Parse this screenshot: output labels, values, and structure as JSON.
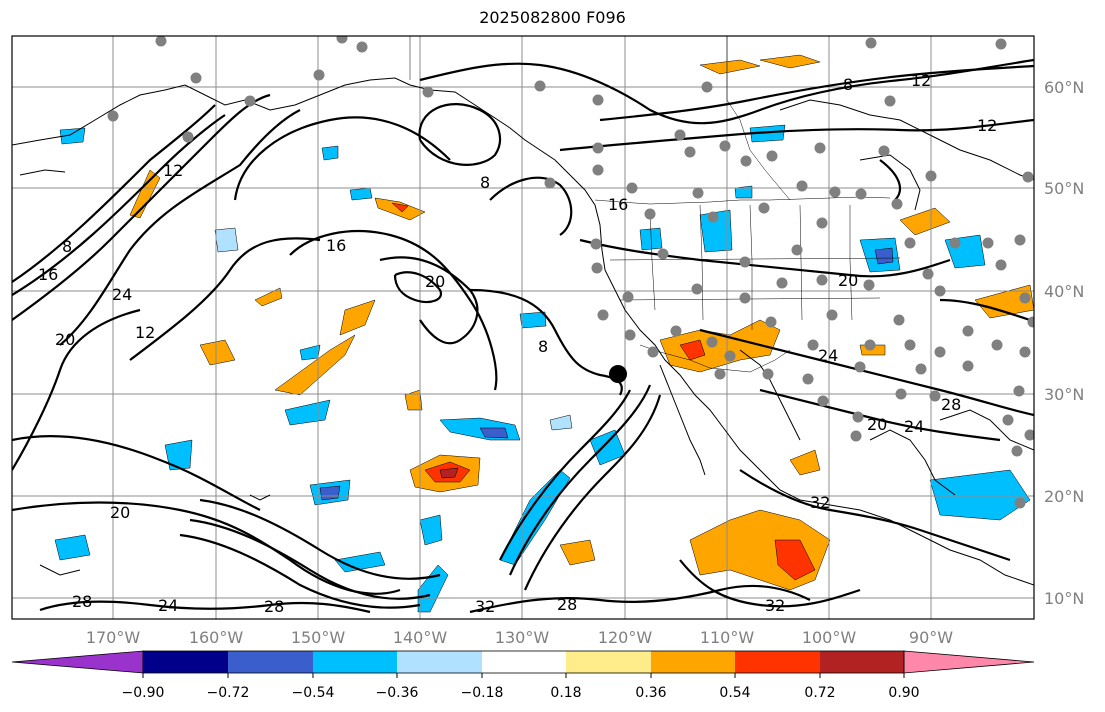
{
  "title": "2025082800 F096",
  "map": {
    "lat_labels": [
      "60°N",
      "50°N",
      "40°N",
      "30°N",
      "20°N",
      "10°N"
    ],
    "lon_labels": [
      "170°W",
      "160°W",
      "150°W",
      "140°W",
      "130°W",
      "120°W",
      "110°W",
      "100°W",
      "90°W"
    ],
    "contour_labels": [
      "8",
      "12",
      "16",
      "20",
      "24",
      "28",
      "32"
    ]
  },
  "colorbar": {
    "ticks": [
      "−0.90",
      "−0.72",
      "−0.54",
      "−0.36",
      "−0.18",
      "0.18",
      "0.36",
      "0.54",
      "0.72",
      "0.90"
    ],
    "colors": [
      "#9933cc",
      "#00008b",
      "#3a5fcd",
      "#00bfff",
      "#b0e2ff",
      "#ffffff",
      "#ffec8b",
      "#ffa500",
      "#ff3300",
      "#b22222",
      "#ff88aa"
    ]
  }
}
